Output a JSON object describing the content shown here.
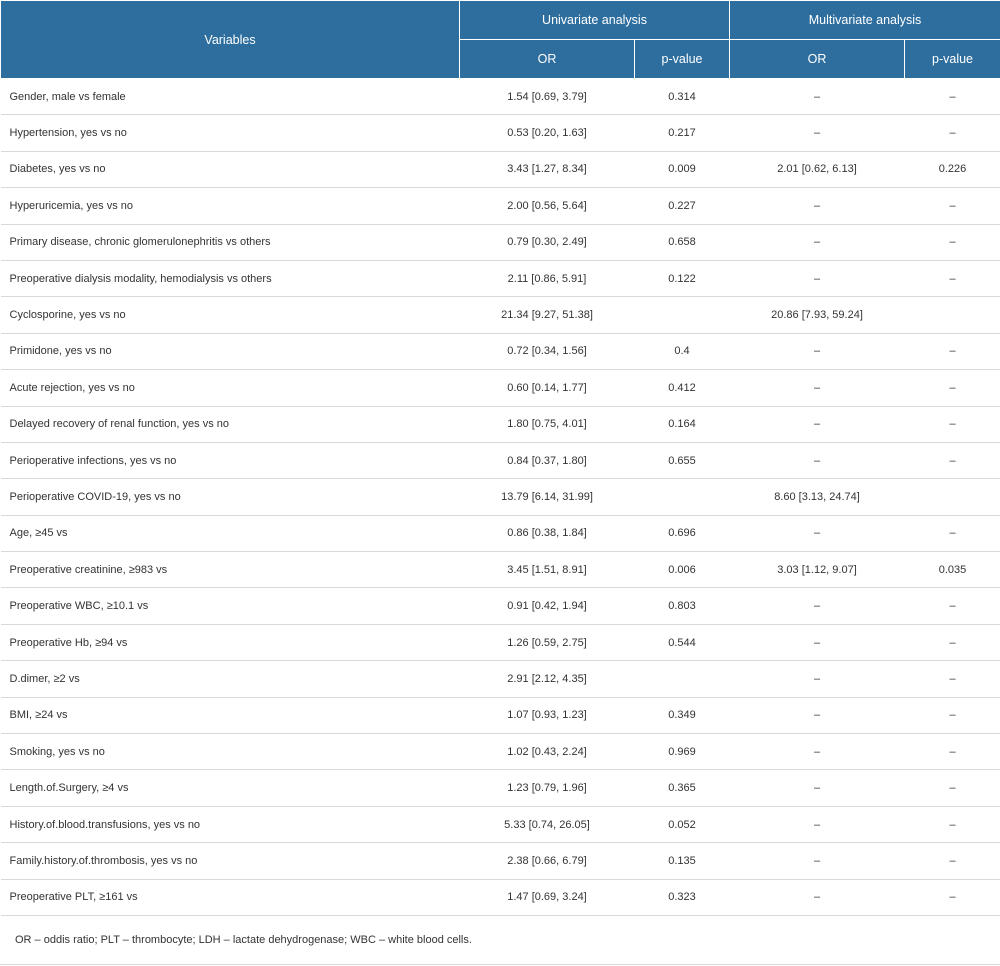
{
  "header": {
    "variables": "Variables",
    "univariate": "Univariate analysis",
    "multivariate": "Multivariate analysis",
    "or": "OR",
    "pvalue": "p-value"
  },
  "rows": [
    {
      "variable": "Gender, male vs female",
      "uni_or": "1.54 [0.69, 3.79]",
      "uni_p": "0.314",
      "multi_or": "–",
      "multi_p": "–"
    },
    {
      "variable": "Hypertension, yes vs no",
      "uni_or": "0.53 [0.20, 1.63]",
      "uni_p": "0.217",
      "multi_or": "–",
      "multi_p": "–"
    },
    {
      "variable": "Diabetes, yes vs no",
      "uni_or": "3.43 [1.27, 8.34]",
      "uni_p": "0.009",
      "multi_or": "2.01 [0.62, 6.13]",
      "multi_p": "0.226"
    },
    {
      "variable": "Hyperuricemia, yes vs no",
      "uni_or": "2.00 [0.56, 5.64]",
      "uni_p": "0.227",
      "multi_or": "–",
      "multi_p": "–"
    },
    {
      "variable": "Primary disease, chronic glomerulonephritis vs others",
      "uni_or": "0.79 [0.30, 2.49]",
      "uni_p": "0.658",
      "multi_or": "–",
      "multi_p": "–"
    },
    {
      "variable": "Preoperative dialysis modality, hemodialysis vs others",
      "uni_or": "2.11 [0.86, 5.91]",
      "uni_p": "0.122",
      "multi_or": "–",
      "multi_p": "–"
    },
    {
      "variable": "Cyclosporine, yes vs no",
      "uni_or": "21.34 [9.27, 51.38]",
      "uni_p": "",
      "multi_or": "20.86 [7.93, 59.24]",
      "multi_p": ""
    },
    {
      "variable": "Primidone, yes vs no",
      "uni_or": "0.72 [0.34, 1.56]",
      "uni_p": "0.4",
      "multi_or": "–",
      "multi_p": "–"
    },
    {
      "variable": "Acute rejection, yes vs no",
      "uni_or": "0.60 [0.14, 1.77]",
      "uni_p": "0.412",
      "multi_or": "–",
      "multi_p": "–"
    },
    {
      "variable": "Delayed recovery of renal function, yes vs no",
      "uni_or": "1.80 [0.75, 4.01]",
      "uni_p": "0.164",
      "multi_or": "–",
      "multi_p": "–"
    },
    {
      "variable": "Perioperative infections, yes vs no",
      "uni_or": "0.84 [0.37, 1.80]",
      "uni_p": "0.655",
      "multi_or": "–",
      "multi_p": "–"
    },
    {
      "variable": "Perioperative COVID-19, yes vs no",
      "uni_or": "13.79 [6.14, 31.99]",
      "uni_p": "",
      "multi_or": "8.60 [3.13, 24.74]",
      "multi_p": ""
    },
    {
      "variable": "Age, ≥45 vs",
      "uni_or": "0.86 [0.38, 1.84]",
      "uni_p": "0.696",
      "multi_or": "–",
      "multi_p": "–"
    },
    {
      "variable": "Preoperative creatinine, ≥983 vs",
      "uni_or": "3.45 [1.51, 8.91]",
      "uni_p": "0.006",
      "multi_or": "3.03 [1.12, 9.07]",
      "multi_p": "0.035"
    },
    {
      "variable": "Preoperative WBC, ≥10.1 vs",
      "uni_or": "0.91 [0.42, 1.94]",
      "uni_p": "0.803",
      "multi_or": "–",
      "multi_p": "–"
    },
    {
      "variable": "Preoperative Hb, ≥94 vs",
      "uni_or": "1.26 [0.59, 2.75]",
      "uni_p": "0.544",
      "multi_or": "–",
      "multi_p": "–"
    },
    {
      "variable": "D.dimer, ≥2 vs",
      "uni_or": "2.91 [2.12, 4.35]",
      "uni_p": "",
      "multi_or": "–",
      "multi_p": "–"
    },
    {
      "variable": "BMI, ≥24 vs",
      "uni_or": "1.07 [0.93, 1.23]",
      "uni_p": "0.349",
      "multi_or": "–",
      "multi_p": "–"
    },
    {
      "variable": "Smoking, yes vs no",
      "uni_or": "1.02 [0.43, 2.24]",
      "uni_p": "0.969",
      "multi_or": "–",
      "multi_p": "–"
    },
    {
      "variable": "Length.of.Surgery, ≥4 vs",
      "uni_or": "1.23 [0.79, 1.96]",
      "uni_p": "0.365",
      "multi_or": "–",
      "multi_p": "–"
    },
    {
      "variable": "History.of.blood.transfusions, yes vs no",
      "uni_or": "5.33 [0.74, 26.05]",
      "uni_p": "0.052",
      "multi_or": "–",
      "multi_p": "–"
    },
    {
      "variable": "Family.history.of.thrombosis, yes vs no",
      "uni_or": "2.38 [0.66, 6.79]",
      "uni_p": "0.135",
      "multi_or": "–",
      "multi_p": "–"
    },
    {
      "variable": "Preoperative PLT, ≥161 vs",
      "uni_or": "1.47 [0.69, 3.24]",
      "uni_p": "0.323",
      "multi_or": "–",
      "multi_p": "–"
    }
  ],
  "footnote": "OR – oddis ratio; PLT – thrombocyte; LDH – lactate dehydrogenase; WBC – white blood cells.",
  "colors": {
    "header_bg": "#2e6e9e",
    "header_text": "#ffffff",
    "row_border": "#d9d9d9"
  }
}
